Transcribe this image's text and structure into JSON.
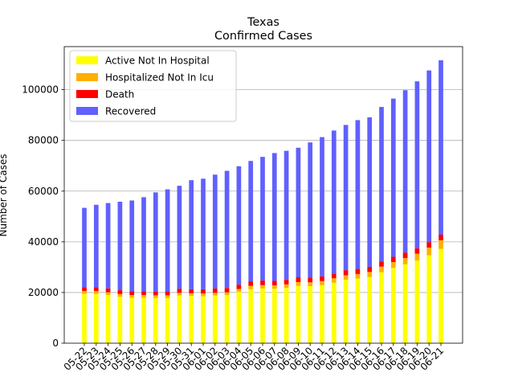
{
  "chart_data": {
    "type": "bar",
    "stacked": true,
    "title": "Texas",
    "subtitle": "Confirmed Cases",
    "xlabel": "",
    "ylabel": "Number of Cases",
    "ylim": [
      0,
      117000
    ],
    "yticks": [
      0,
      20000,
      40000,
      60000,
      80000,
      100000
    ],
    "grid": "horizontal",
    "legend_position": "top-left",
    "categories": [
      "05-22",
      "05-23",
      "05-24",
      "05-25",
      "05-26",
      "05-27",
      "05-28",
      "05-29",
      "05-30",
      "05-31",
      "06-01",
      "06-02",
      "06-03",
      "06-04",
      "06-05",
      "06-06",
      "06-07",
      "06-08",
      "06-09",
      "06-10",
      "06-11",
      "06-12",
      "06-13",
      "06-14",
      "06-15",
      "06-16",
      "06-17",
      "06-18",
      "06-19",
      "06-20",
      "06-21"
    ],
    "series": [
      {
        "name": "Active Not In Hospital",
        "color": "#ffff00",
        "values": [
          19500,
          19500,
          19000,
          18300,
          17900,
          17900,
          17800,
          17800,
          18800,
          18600,
          18500,
          18800,
          19000,
          20200,
          21300,
          21600,
          21500,
          21800,
          22600,
          22500,
          22900,
          23900,
          25000,
          25500,
          26100,
          28000,
          29700,
          31100,
          32600,
          34700,
          37200
        ]
      },
      {
        "name": "Hospitalized Not In Icu",
        "color": "#ffb000",
        "values": [
          1100,
          1100,
          1100,
          1100,
          1100,
          1100,
          1100,
          1100,
          1100,
          1100,
          1100,
          1100,
          1100,
          1200,
          1300,
          1300,
          1300,
          1400,
          1500,
          1500,
          1600,
          1700,
          1800,
          1800,
          2000,
          2200,
          2300,
          2500,
          2700,
          3000,
          3400
        ]
      },
      {
        "name": "Death",
        "color": "#ff0000",
        "values": [
          1500,
          1500,
          1500,
          1500,
          1500,
          1500,
          1500,
          1600,
          1600,
          1600,
          1700,
          1700,
          1700,
          1700,
          1800,
          1800,
          1800,
          1800,
          1900,
          1900,
          1900,
          1900,
          2000,
          2000,
          2000,
          2000,
          2100,
          2100,
          2100,
          2200,
          2200
        ]
      },
      {
        "name": "Recovered",
        "color": "#6060ff",
        "values": [
          31300,
          32500,
          33700,
          34900,
          35800,
          37100,
          39100,
          40200,
          40600,
          43000,
          43600,
          44900,
          46200,
          46700,
          47500,
          48800,
          50400,
          50900,
          51100,
          53300,
          54900,
          56400,
          57300,
          58700,
          59000,
          61000,
          62400,
          64100,
          65900,
          67700,
          68800
        ]
      }
    ]
  }
}
